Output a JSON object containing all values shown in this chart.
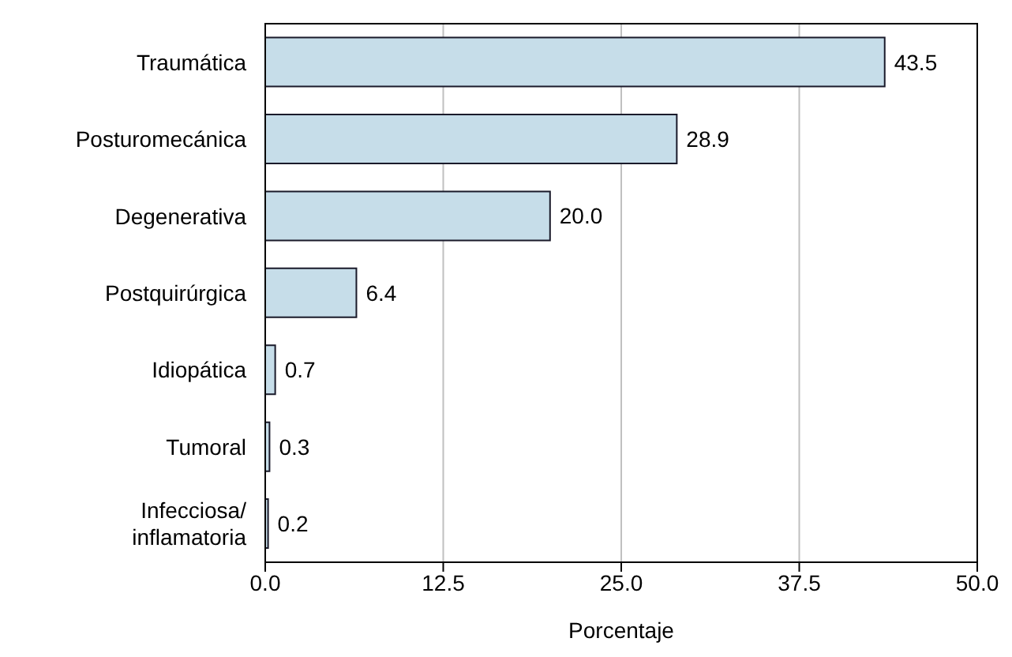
{
  "chart_data": {
    "type": "bar",
    "orientation": "horizontal",
    "xlabel": "Porcentaje",
    "categories": [
      "Traumática",
      "Posturomecánica",
      "Degenerativa",
      "Postquirúrgica",
      "Idiopática",
      "Tumoral",
      "Infecciosa/inflamatoria"
    ],
    "values": [
      43.5,
      28.9,
      20.0,
      6.4,
      0.7,
      0.3,
      0.2
    ],
    "value_labels": [
      "43.5",
      "28.9",
      "20.0",
      "6.4",
      "0.7",
      "0.3",
      "0.2"
    ],
    "color": "#c6dde9",
    "xlim": [
      0,
      50
    ],
    "xticks": [
      {
        "value": 0,
        "label": "0.0"
      },
      12.5,
      {
        "value": 25,
        "label": "25.0"
      },
      37.5,
      {
        "value": 50,
        "label": "50.0"
      }
    ],
    "grid": "x"
  }
}
